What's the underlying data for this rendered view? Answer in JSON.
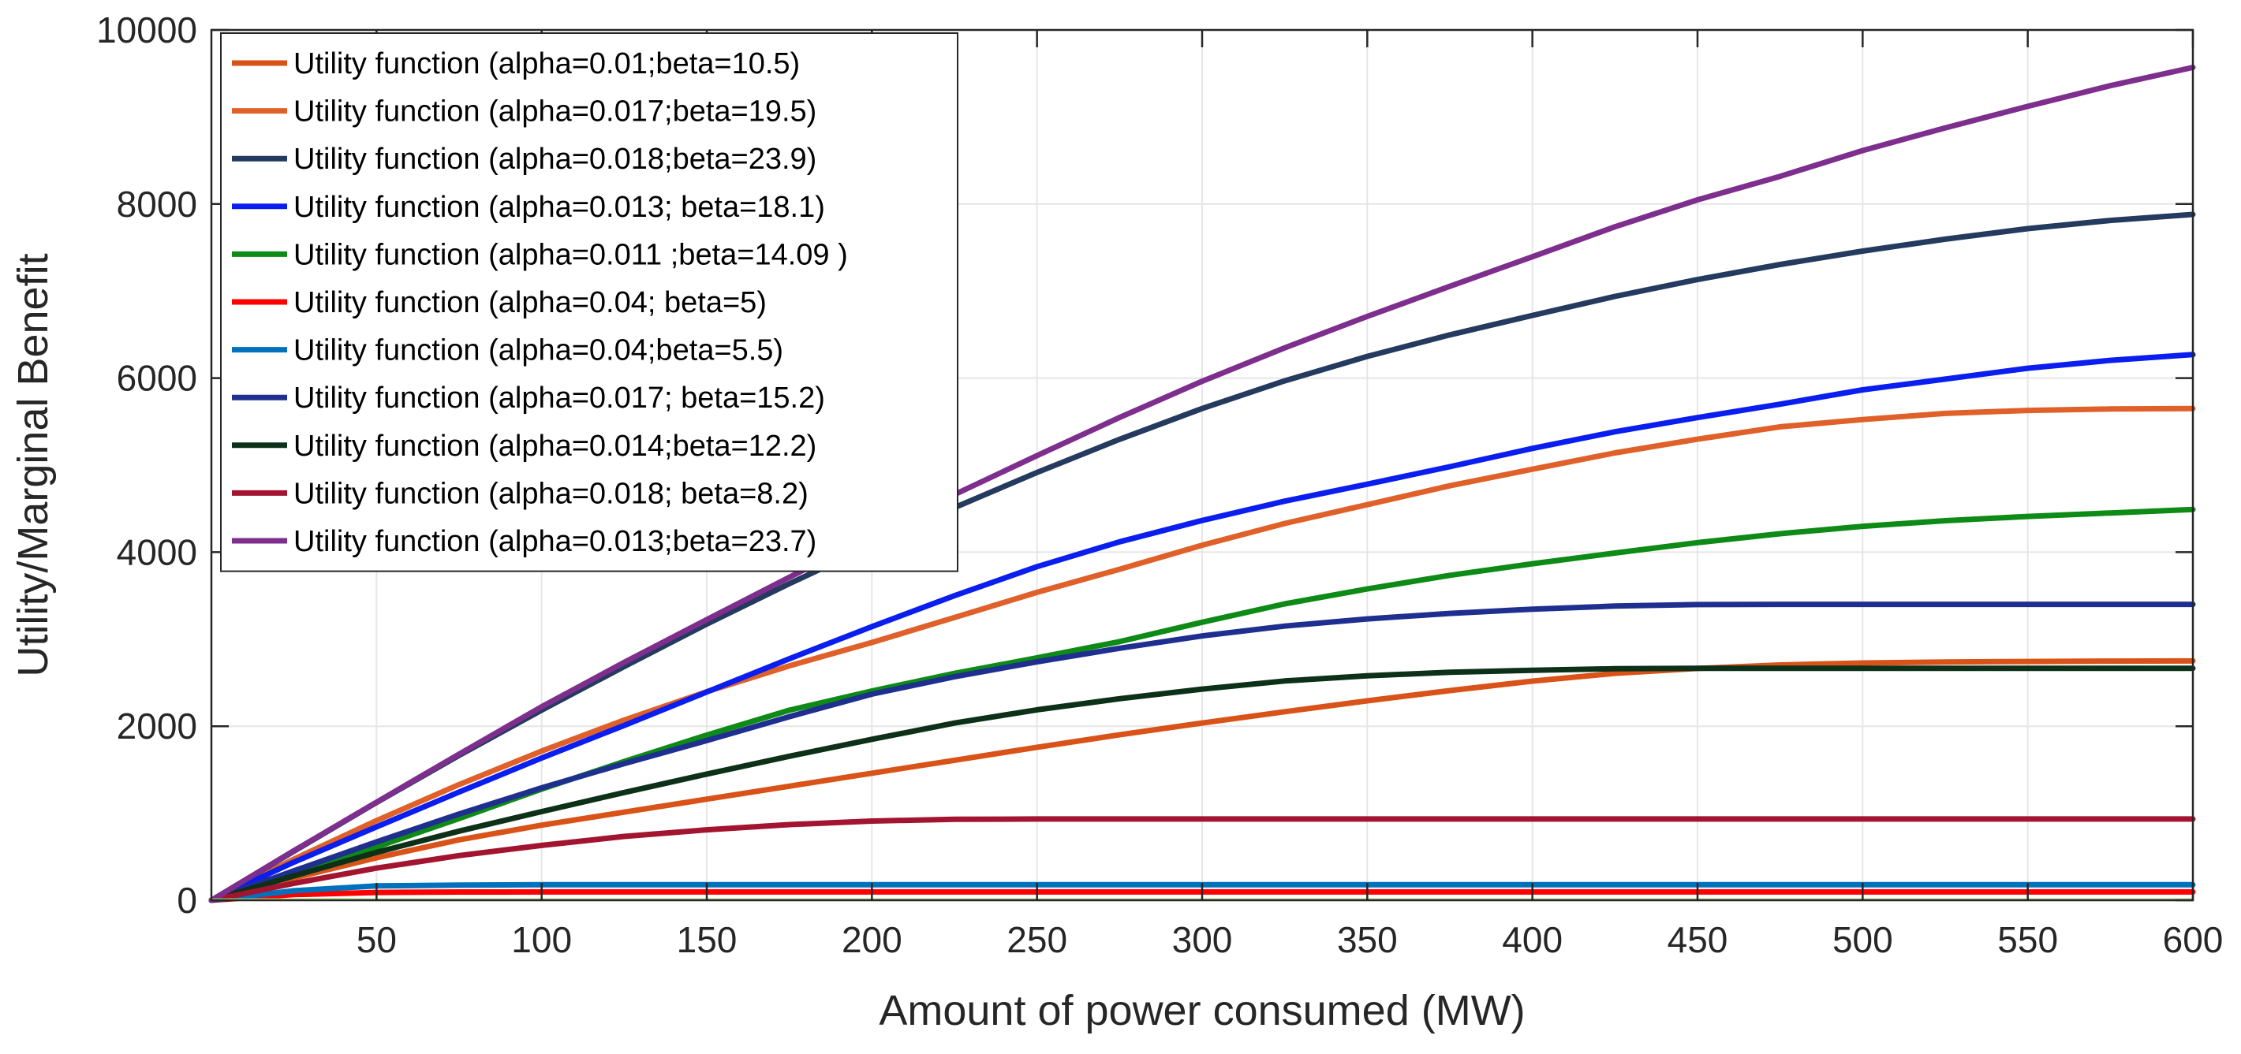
{
  "chart_data": {
    "type": "line",
    "title": "",
    "xlabel": "Amount of power consumed (MW)",
    "ylabel": "Utility/Marginal Benefit",
    "xlim": [
      0,
      600
    ],
    "ylim": [
      0,
      10000
    ],
    "grid": true,
    "legend_position": "top-left",
    "x_ticks": [
      50,
      100,
      150,
      200,
      250,
      300,
      350,
      400,
      450,
      500,
      550,
      600
    ],
    "x_tick_labels": [
      "50",
      "100",
      "150",
      "200",
      "250",
      "300",
      "350",
      "400",
      "450",
      "500",
      "550",
      "600"
    ],
    "y_ticks": [
      0,
      2000,
      4000,
      6000,
      8000,
      10000
    ],
    "y_tick_labels": [
      "0",
      "2000",
      "4000",
      "6000",
      "8000",
      "10000"
    ],
    "x": [
      0,
      25,
      50,
      75,
      100,
      125,
      150,
      175,
      200,
      225,
      250,
      275,
      300,
      325,
      350,
      375,
      400,
      425,
      450,
      475,
      500,
      525,
      550,
      575,
      600
    ],
    "series": [
      {
        "name": "Utility function (alpha=0.01;beta=10.5)",
        "color": "#D95319",
        "values": [
          0,
          256,
          488,
          695,
          863,
          1013,
          1162,
          1311,
          1460,
          1609,
          1758,
          1901,
          2037,
          2167,
          2292,
          2409,
          2518,
          2608,
          2664,
          2704,
          2726,
          2738,
          2744,
          2748,
          2750
        ]
      },
      {
        "name": "Utility function (alpha=0.017;beta=19.5)",
        "color": "#E0602A",
        "values": [
          0,
          473,
          916,
          1330,
          1715,
          2071,
          2397,
          2694,
          2962,
          3249,
          3538,
          3803,
          4080,
          4330,
          4545,
          4763,
          4953,
          5140,
          5298,
          5440,
          5524,
          5594,
          5629,
          5645,
          5650
        ]
      },
      {
        "name": "Utility function (alpha=0.018;beta=23.9)",
        "color": "#243A5E",
        "values": [
          0,
          564,
          1123,
          1665,
          2185,
          2686,
          3174,
          3638,
          4083,
          4512,
          4916,
          5296,
          5650,
          5968,
          6249,
          6496,
          6720,
          6938,
          7132,
          7305,
          7459,
          7596,
          7717,
          7812,
          7880
        ]
      },
      {
        "name": "Utility function (alpha=0.013; beta=18.1)",
        "color": "#0A1EF0",
        "values": [
          0,
          438,
          843,
          1244,
          1635,
          2009,
          2393,
          2775,
          3144,
          3500,
          3833,
          4119,
          4364,
          4586,
          4781,
          4982,
          5192,
          5383,
          5546,
          5700,
          5865,
          5988,
          6113,
          6204,
          6270
        ]
      },
      {
        "name": "Utility function (alpha=0.011 ;beta=14.09 )",
        "color": "#0E8A16",
        "values": [
          0,
          315,
          612,
          939,
          1278,
          1594,
          1899,
          2184,
          2405,
          2607,
          2785,
          2972,
          3195,
          3406,
          3577,
          3734,
          3867,
          3990,
          4110,
          4212,
          4297,
          4361,
          4410,
          4450,
          4490
        ]
      },
      {
        "name": "Utility function (alpha=0.04; beta=5)",
        "color": "#FF0000",
        "values": [
          0,
          65,
          90,
          95,
          96,
          96,
          96,
          96,
          96,
          96,
          96,
          96,
          96,
          96,
          96,
          96,
          96,
          96,
          96,
          96,
          96,
          96,
          96,
          96,
          96
        ]
      },
      {
        "name": "Utility function (alpha=0.04;beta=5.5)",
        "color": "#0072BD",
        "values": [
          0,
          110,
          165,
          175,
          178,
          178,
          178,
          178,
          178,
          178,
          178,
          178,
          178,
          178,
          178,
          178,
          178,
          178,
          178,
          178,
          178,
          178,
          178,
          178,
          178
        ]
      },
      {
        "name": "Utility function (alpha=0.017; beta=15.2)",
        "color": "#1F2F8F",
        "values": [
          0,
          339,
          671,
          991,
          1293,
          1571,
          1835,
          2110,
          2369,
          2569,
          2740,
          2896,
          3037,
          3150,
          3233,
          3296,
          3345,
          3380,
          3398,
          3400,
          3400,
          3400,
          3400,
          3400,
          3400
        ]
      },
      {
        "name": "Utility function (alpha=0.014;beta=12.2)",
        "color": "#0D3018",
        "values": [
          0,
          281,
          551,
          794,
          1019,
          1238,
          1450,
          1655,
          1850,
          2036,
          2188,
          2316,
          2427,
          2520,
          2580,
          2620,
          2643,
          2660,
          2665,
          2665,
          2665,
          2665,
          2665,
          2665,
          2665
        ]
      },
      {
        "name": "Utility function (alpha=0.018; beta=8.2)",
        "color": "#A2142F",
        "values": [
          0,
          195,
          370,
          514,
          630,
          734,
          810,
          870,
          910,
          930,
          934,
          934,
          934,
          934,
          934,
          934,
          934,
          934,
          934,
          934,
          934,
          934,
          934,
          934,
          934
        ]
      },
      {
        "name": "Utility function (alpha=0.013;beta=23.7)",
        "color": "#7E2F8E",
        "values": [
          0,
          571,
          1127,
          1679,
          2224,
          2734,
          3225,
          3711,
          4194,
          4661,
          5110,
          5547,
          5964,
          6347,
          6708,
          7054,
          7394,
          7738,
          8048,
          8318,
          8614,
          8875,
          9122,
          9360,
          9570
        ]
      }
    ]
  }
}
